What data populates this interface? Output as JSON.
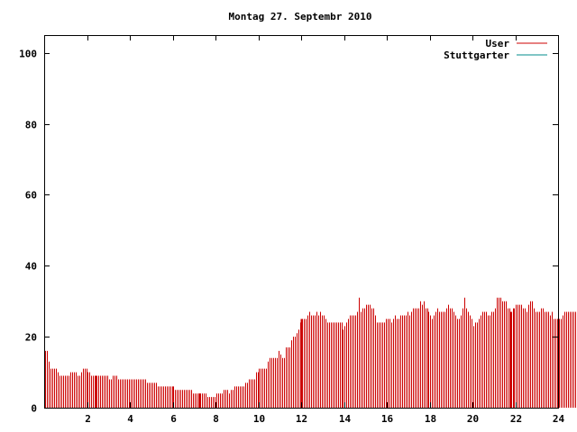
{
  "chart_data": {
    "type": "bar",
    "title": "Montag 27. Septembr 2010",
    "xlabel": "",
    "ylabel": "",
    "xlim": [
      0,
      24
    ],
    "ylim": [
      0,
      105
    ],
    "x_ticks": [
      "2",
      "4",
      "6",
      "8",
      "10",
      "12",
      "14",
      "16",
      "18",
      "20",
      "22",
      "24"
    ],
    "y_ticks": [
      "0",
      "20",
      "40",
      "60",
      "80",
      "100"
    ],
    "grid": false,
    "legend_position": "top-right",
    "series": [
      {
        "name": "User",
        "color": "#cc0000",
        "interval_hours": 0.08333,
        "values": [
          16,
          16,
          13,
          11,
          11,
          11,
          11,
          10,
          9,
          9,
          9,
          9,
          9,
          9,
          10,
          10,
          10,
          10,
          9,
          9,
          10,
          11,
          11,
          11,
          10,
          10,
          9,
          9,
          9,
          9,
          9,
          9,
          9,
          9,
          9,
          9,
          8,
          8,
          9,
          9,
          9,
          8,
          8,
          8,
          8,
          8,
          8,
          8,
          8,
          8,
          8,
          8,
          8,
          8,
          8,
          8,
          8,
          7,
          7,
          7,
          7,
          7,
          7,
          6,
          6,
          6,
          6,
          6,
          6,
          6,
          6,
          6,
          6,
          5,
          5,
          5,
          5,
          5,
          5,
          5,
          5,
          5,
          5,
          4,
          4,
          4,
          4,
          4,
          4,
          4,
          4,
          3,
          3,
          3,
          3,
          3,
          4,
          4,
          4,
          4,
          5,
          5,
          5,
          4,
          5,
          5,
          6,
          6,
          6,
          6,
          6,
          6,
          7,
          7,
          8,
          8,
          8,
          8,
          10,
          10,
          11,
          11,
          11,
          11,
          11,
          13,
          14,
          14,
          14,
          14,
          14,
          16,
          15,
          14,
          14,
          17,
          17,
          17,
          19,
          20,
          20,
          21,
          22,
          24,
          25,
          25,
          25,
          26,
          27,
          26,
          26,
          26,
          27,
          26,
          27,
          26,
          26,
          25,
          24,
          24,
          24,
          24,
          24,
          24,
          24,
          24,
          24,
          22,
          23,
          24,
          25,
          26,
          26,
          26,
          26,
          27,
          31,
          27,
          28,
          28,
          29,
          29,
          29,
          28,
          28,
          26,
          24,
          24,
          24,
          24,
          24,
          25,
          25,
          25,
          24,
          25,
          26,
          25,
          25,
          26,
          26,
          26,
          26,
          27,
          26,
          27,
          28,
          28,
          28,
          28,
          30,
          29,
          30,
          28,
          28,
          27,
          26,
          25,
          26,
          27,
          28,
          27,
          27,
          27,
          27,
          28,
          29,
          28,
          28,
          27,
          26,
          25,
          25,
          26,
          28,
          31,
          28,
          27,
          26,
          25,
          23,
          24,
          24,
          25,
          26,
          27,
          27,
          27,
          26,
          26,
          27,
          27,
          28,
          31,
          31,
          31,
          30,
          30,
          30,
          28,
          28,
          27,
          28,
          28,
          29,
          29,
          29,
          29,
          28,
          28,
          27,
          29,
          30,
          30,
          28,
          27,
          27,
          27,
          28,
          28,
          27,
          27,
          27,
          26,
          27,
          25,
          25,
          25,
          25,
          25,
          26,
          27,
          27,
          27,
          27,
          27,
          27,
          27,
          29,
          30,
          28,
          27,
          27,
          27,
          28,
          25,
          24,
          24,
          24,
          23,
          23,
          24,
          24,
          24,
          23,
          23,
          23,
          23,
          18,
          18
        ]
      },
      {
        "name": "Stuttgarter",
        "color": "#008b8b",
        "interval_hours": 0.08333,
        "values": []
      }
    ],
    "highlight_lines_hours": [
      2.42,
      7.25,
      12.0,
      21.75
    ]
  }
}
